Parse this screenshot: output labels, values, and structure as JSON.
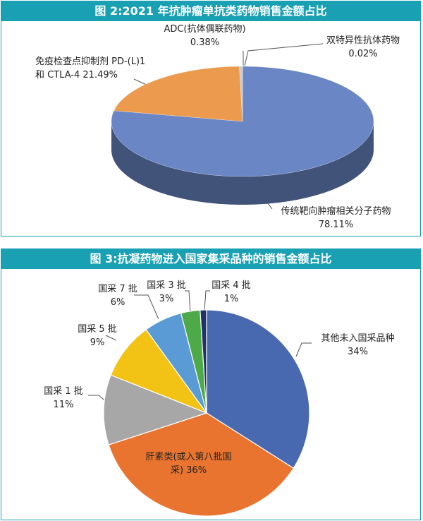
{
  "chart_data": [
    {
      "type": "pie",
      "three_d": true,
      "title": "图 2:2021 年抗肿瘤单抗类药物销售金额占比",
      "categories": [
        "双特异性抗体药物",
        "传统靶向肿瘤相关分子药物",
        "免疫检查点抑制剂 PD-(L)1 和 CTLA-4",
        "ADC(抗体偶联药物)"
      ],
      "values": [
        0.02,
        78.11,
        21.49,
        0.38
      ],
      "value_labels": [
        "0.02%",
        "78.11%",
        "21.49%",
        "0.38%"
      ],
      "colors": [
        "#a9b7d9",
        "#6a86c4",
        "#eb9a4e",
        "#c9cbd0"
      ]
    },
    {
      "type": "pie",
      "three_d": false,
      "title": "图 3:抗凝药物进入国家集采品种的销售金额占比",
      "categories": [
        "其他未入国采品种",
        "肝素类(或入第八批国采)",
        "国采 1 批",
        "国采 5 批",
        "国采 7 批",
        "国采 3 批",
        "国采 4 批"
      ],
      "values": [
        34,
        36,
        11,
        9,
        6,
        3,
        1
      ],
      "value_labels": [
        "34%",
        "36%",
        "11%",
        "9%",
        "6%",
        "3%",
        "1%"
      ],
      "colors": [
        "#4868b0",
        "#e8742f",
        "#a7a7a7",
        "#f2c314",
        "#5b9bd5",
        "#4ea948",
        "#213366"
      ]
    }
  ]
}
